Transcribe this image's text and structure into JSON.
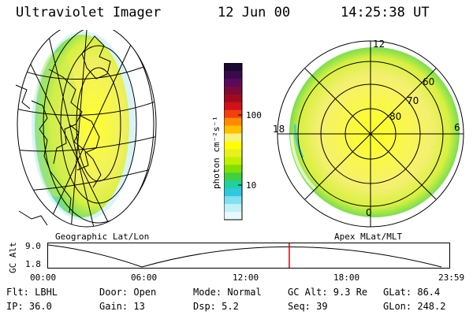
{
  "header": {
    "instrument": "Ultraviolet Imager",
    "date": "12 Jun 00",
    "time": "14:25:38 UT"
  },
  "projections": {
    "left_label": "Geographic Lat/Lon",
    "right_label": "Apex MLat/MLT"
  },
  "colorbar": {
    "unit_label": "photon cm⁻²s⁻¹",
    "tick_100": "100",
    "tick_10": "10",
    "colors": [
      "#1a0a2e",
      "#3a0a4a",
      "#5a0a5a",
      "#7a0a3a",
      "#a00a20",
      "#d0101a",
      "#f04010",
      "#ff8a00",
      "#ffc000",
      "#f8f080",
      "#ffff00",
      "#e8f020",
      "#c0f000",
      "#80e000",
      "#40d040",
      "#20d0a0",
      "#30c8e0",
      "#80e0f0",
      "#c0f0f8",
      "#e8f8fb"
    ]
  },
  "polar": {
    "mlt_12": "12",
    "mlt_6": "6",
    "mlt_18": "18",
    "mlt_0": "0",
    "mlat_60": "60",
    "mlat_70": "70",
    "mlat_80": "80"
  },
  "timeline": {
    "ylabel": "GC Alt",
    "y_max": "9.0",
    "y_min": "1.8",
    "x_labels": [
      "00:00",
      "06:00",
      "12:00",
      "18:00",
      "23:59"
    ],
    "current_time_fraction": 0.601,
    "marker_color": "#e00000"
  },
  "footer": {
    "flt": "Flt: LBHL",
    "ip": "IP: 36.0",
    "door": "Door: Open",
    "gain": "Gain: 13",
    "mode": "Mode: Normal",
    "dsp": "Dsp:    5.2",
    "gc_alt": "GC Alt: 9.3 Re",
    "seq": "Seq: 39",
    "glat": "GLat:   86.4",
    "glon": "GLon:  248.2"
  }
}
